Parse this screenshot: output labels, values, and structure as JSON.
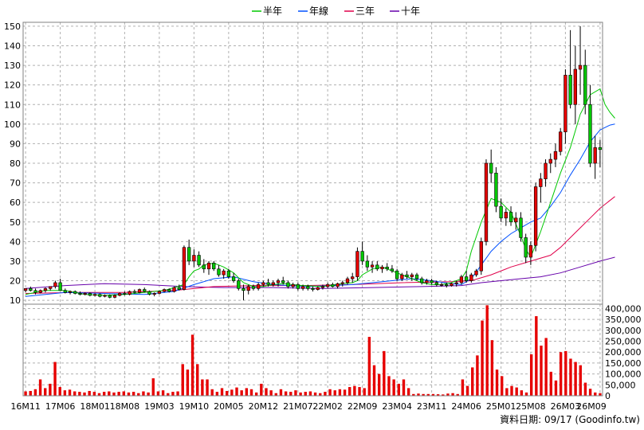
{
  "legend": [
    {
      "name": "半年",
      "color": "#00c800"
    },
    {
      "name": "年線",
      "color": "#0050ff"
    },
    {
      "name": "三年",
      "color": "#e0004a"
    },
    {
      "name": "十年",
      "color": "#6600aa"
    }
  ],
  "footer": "資料日期: 09/17  (Goodinfo.tw)",
  "chart_data": {
    "type": "candlestick",
    "price_axis": {
      "ylim": [
        8,
        152
      ],
      "ticks": [
        10,
        20,
        30,
        40,
        50,
        60,
        70,
        80,
        90,
        100,
        110,
        120,
        130,
        140,
        150
      ],
      "position": "left"
    },
    "volume_axis": {
      "ylim": [
        0,
        420000
      ],
      "ticks": [
        0,
        50000,
        100000,
        150000,
        200000,
        250000,
        300000,
        350000,
        400000
      ],
      "tick_labels": [
        "0",
        "50,000",
        "100,000",
        "150,000",
        "200,000",
        "250,000",
        "300,000",
        "350,000",
        "400,000"
      ],
      "position": "right"
    },
    "x_labels": [
      "16M11",
      "17M06",
      "18M01",
      "18M08",
      "19M03",
      "19M10",
      "20M05",
      "20M12",
      "21M07",
      "22M02",
      "22M09",
      "23M04",
      "23M11",
      "24M06",
      "25M01",
      "25M08",
      "26M03",
      "26M09"
    ],
    "grid": true,
    "legend_position": "top",
    "colors": {
      "up": "#e60000",
      "down": "#00c800",
      "volume": "#e60000"
    },
    "candles": [
      [
        15,
        16,
        14,
        16
      ],
      [
        16,
        17,
        14.5,
        15
      ],
      [
        15,
        16,
        13,
        14
      ],
      [
        14,
        15.5,
        13.5,
        15
      ],
      [
        15,
        16.5,
        14,
        16
      ],
      [
        16,
        17,
        15,
        17
      ],
      [
        17,
        20,
        16,
        19
      ],
      [
        19,
        21,
        15,
        15
      ],
      [
        15,
        16,
        13.5,
        14
      ],
      [
        14,
        15,
        13,
        14.5
      ],
      [
        14.5,
        15,
        13,
        13.5
      ],
      [
        13.5,
        14.5,
        12.5,
        13
      ],
      [
        13,
        14,
        12.5,
        13.5
      ],
      [
        13.5,
        14,
        12,
        12.5
      ],
      [
        12.5,
        13.5,
        12,
        13
      ],
      [
        13,
        13.5,
        11.5,
        12
      ],
      [
        12,
        13,
        11.5,
        12.5
      ],
      [
        12.5,
        13,
        11,
        11.5
      ],
      [
        11.5,
        13,
        11,
        12.5
      ],
      [
        12.5,
        14,
        12,
        13.5
      ],
      [
        13.5,
        14.5,
        12.5,
        13
      ],
      [
        13,
        15,
        12.5,
        14.5
      ],
      [
        14.5,
        15.5,
        13.5,
        14
      ],
      [
        14,
        16,
        13.5,
        15.5
      ],
      [
        15.5,
        16.5,
        14,
        14.5
      ],
      [
        14.5,
        15,
        12.5,
        13
      ],
      [
        13,
        14,
        12,
        13.5
      ],
      [
        13.5,
        15,
        13,
        14.5
      ],
      [
        14.5,
        16,
        14,
        15.5
      ],
      [
        15.5,
        16,
        14,
        14.5
      ],
      [
        14.5,
        17,
        14,
        16.5
      ],
      [
        16.5,
        18,
        15,
        15.5
      ],
      [
        15.5,
        38,
        15,
        37
      ],
      [
        37,
        41,
        28,
        30
      ],
      [
        30,
        36,
        27,
        33
      ],
      [
        33,
        35,
        27,
        28
      ],
      [
        28,
        31,
        24,
        26
      ],
      [
        26,
        30,
        23,
        29
      ],
      [
        29,
        30,
        25,
        26
      ],
      [
        26,
        28,
        22,
        23
      ],
      [
        23,
        26,
        21,
        25
      ],
      [
        25,
        26,
        21,
        22
      ],
      [
        22,
        24,
        19,
        20
      ],
      [
        20,
        21,
        15,
        16
      ],
      [
        16,
        18,
        10,
        15
      ],
      [
        15,
        18,
        13,
        17
      ],
      [
        17,
        18,
        15,
        16
      ],
      [
        16,
        19,
        15,
        18
      ],
      [
        18,
        20,
        17,
        19
      ],
      [
        19,
        21,
        17,
        18
      ],
      [
        18,
        20,
        17,
        19
      ],
      [
        19,
        21,
        17,
        20
      ],
      [
        20,
        22,
        18,
        19
      ],
      [
        19,
        20,
        16,
        17
      ],
      [
        17,
        19,
        16,
        18
      ],
      [
        18,
        19,
        15,
        16
      ],
      [
        16,
        18,
        15,
        17
      ],
      [
        17,
        18,
        15,
        16
      ],
      [
        16,
        17,
        14.5,
        15.5
      ],
      [
        15.5,
        17,
        15,
        16.5
      ],
      [
        16.5,
        18,
        15.5,
        17
      ],
      [
        17,
        19,
        16,
        18
      ],
      [
        18,
        19,
        16.5,
        17
      ],
      [
        17,
        19,
        16,
        18.5
      ],
      [
        18.5,
        20,
        17,
        19
      ],
      [
        19,
        22,
        18,
        21
      ],
      [
        21,
        24,
        19,
        22
      ],
      [
        22,
        37,
        20,
        35
      ],
      [
        35,
        40,
        28,
        30
      ],
      [
        30,
        33,
        25,
        27
      ],
      [
        27,
        30,
        24,
        28
      ],
      [
        28,
        30,
        25,
        26
      ],
      [
        26,
        28,
        24,
        27
      ],
      [
        27,
        29,
        25,
        26
      ],
      [
        26,
        28,
        24,
        25
      ],
      [
        25,
        26,
        20,
        21
      ],
      [
        21,
        24,
        20,
        23
      ],
      [
        23,
        25,
        21,
        22
      ],
      [
        22,
        24,
        20,
        23
      ],
      [
        23,
        24,
        20,
        21
      ],
      [
        21,
        22,
        18,
        19
      ],
      [
        19,
        21,
        18,
        20
      ],
      [
        20,
        21,
        18,
        19
      ],
      [
        19,
        20,
        17,
        18
      ],
      [
        18,
        19,
        17,
        18
      ],
      [
        18,
        19,
        16.5,
        17.5
      ],
      [
        17.5,
        19,
        17,
        18.5
      ],
      [
        18.5,
        20,
        17,
        19
      ],
      [
        19,
        23,
        18,
        22
      ],
      [
        22,
        25,
        19,
        20
      ],
      [
        20,
        24,
        19,
        23
      ],
      [
        23,
        26,
        22,
        25
      ],
      [
        25,
        42,
        23,
        40
      ],
      [
        40,
        82,
        38,
        80
      ],
      [
        80,
        87,
        70,
        75
      ],
      [
        75,
        78,
        55,
        58
      ],
      [
        58,
        62,
        50,
        52
      ],
      [
        52,
        57,
        48,
        55
      ],
      [
        55,
        58,
        48,
        50
      ],
      [
        50,
        55,
        46,
        52
      ],
      [
        52,
        55,
        40,
        42
      ],
      [
        42,
        44,
        29,
        32
      ],
      [
        32,
        40,
        28,
        38
      ],
      [
        38,
        70,
        35,
        68
      ],
      [
        68,
        75,
        60,
        72
      ],
      [
        72,
        82,
        68,
        80
      ],
      [
        80,
        85,
        75,
        82
      ],
      [
        82,
        90,
        78,
        86
      ],
      [
        86,
        98,
        84,
        96
      ],
      [
        96,
        128,
        90,
        125
      ],
      [
        125,
        148,
        108,
        110
      ],
      [
        110,
        140,
        100,
        128
      ],
      [
        128,
        150,
        115,
        130
      ],
      [
        130,
        138,
        105,
        110
      ],
      [
        110,
        120,
        78,
        80
      ],
      [
        80,
        94,
        72,
        88
      ],
      [
        88,
        92,
        78,
        87
      ]
    ],
    "volumes": [
      20000,
      22000,
      30000,
      75000,
      35000,
      55000,
      155000,
      40000,
      25000,
      28000,
      20000,
      18000,
      15000,
      22000,
      18000,
      12000,
      18000,
      20000,
      15000,
      18000,
      20000,
      15000,
      18000,
      12000,
      20000,
      15000,
      80000,
      20000,
      25000,
      12000,
      18000,
      20000,
      145000,
      120000,
      280000,
      145000,
      75000,
      75000,
      30000,
      18000,
      35000,
      22000,
      28000,
      38000,
      25000,
      35000,
      30000,
      15000,
      55000,
      35000,
      25000,
      12000,
      30000,
      20000,
      18000,
      25000,
      15000,
      18000,
      20000,
      15000,
      12000,
      18000,
      30000,
      25000,
      30000,
      28000,
      40000,
      45000,
      40000,
      35000,
      270000,
      140000,
      100000,
      205000,
      90000,
      75000,
      55000,
      75000,
      35000,
      8000,
      10000,
      8000,
      8000,
      8000,
      7000,
      6000,
      10000,
      12000,
      8000,
      75000,
      45000,
      130000,
      185000,
      345000,
      415000,
      255000,
      120000,
      90000,
      35000,
      45000,
      38000,
      25000,
      15000,
      190000,
      365000,
      230000,
      265000,
      110000,
      70000,
      200000,
      205000,
      170000,
      155000,
      140000,
      60000,
      32000,
      15000,
      12000
    ],
    "half_year": [
      [
        0,
        13
      ],
      [
        4,
        15
      ],
      [
        8,
        15
      ],
      [
        12,
        13
      ],
      [
        16,
        12.5
      ],
      [
        20,
        13
      ],
      [
        24,
        14
      ],
      [
        28,
        15
      ],
      [
        32,
        18
      ],
      [
        33,
        22
      ],
      [
        34,
        25
      ],
      [
        35,
        26
      ],
      [
        36,
        28
      ],
      [
        38,
        29
      ],
      [
        40,
        27
      ],
      [
        42,
        24
      ],
      [
        44,
        19
      ],
      [
        46,
        17
      ],
      [
        48,
        17
      ],
      [
        50,
        18
      ],
      [
        52,
        18.5
      ],
      [
        56,
        17.5
      ],
      [
        60,
        17
      ],
      [
        64,
        18.5
      ],
      [
        66,
        19
      ],
      [
        67,
        20
      ],
      [
        68,
        23
      ],
      [
        70,
        26
      ],
      [
        72,
        27
      ],
      [
        74,
        25
      ],
      [
        76,
        23
      ],
      [
        78,
        21
      ],
      [
        80,
        19
      ],
      [
        82,
        18
      ],
      [
        84,
        18
      ],
      [
        86,
        19
      ],
      [
        88,
        21
      ],
      [
        89,
        25
      ],
      [
        90,
        35
      ],
      [
        92,
        50
      ],
      [
        94,
        62
      ],
      [
        96,
        60
      ],
      [
        98,
        55
      ],
      [
        100,
        43
      ],
      [
        101,
        36
      ],
      [
        102,
        32
      ],
      [
        104,
        45
      ],
      [
        106,
        60
      ],
      [
        108,
        75
      ],
      [
        110,
        88
      ],
      [
        112,
        105
      ],
      [
        114,
        115
      ],
      [
        116,
        118
      ],
      [
        117,
        110
      ],
      [
        118,
        106
      ],
      [
        119,
        103
      ]
    ],
    "annual": [
      [
        0,
        12
      ],
      [
        8,
        14
      ],
      [
        16,
        13.5
      ],
      [
        24,
        13
      ],
      [
        30,
        14.5
      ],
      [
        34,
        18
      ],
      [
        38,
        21
      ],
      [
        42,
        22
      ],
      [
        46,
        19.5
      ],
      [
        50,
        18
      ],
      [
        56,
        17
      ],
      [
        62,
        17.5
      ],
      [
        66,
        18
      ],
      [
        70,
        19
      ],
      [
        74,
        20
      ],
      [
        78,
        21
      ],
      [
        82,
        20
      ],
      [
        86,
        18.5
      ],
      [
        88,
        18
      ],
      [
        90,
        21
      ],
      [
        92,
        28
      ],
      [
        94,
        35
      ],
      [
        96,
        40
      ],
      [
        98,
        44
      ],
      [
        100,
        47
      ],
      [
        102,
        50
      ],
      [
        104,
        52
      ],
      [
        106,
        58
      ],
      [
        108,
        65
      ],
      [
        110,
        74
      ],
      [
        112,
        82
      ],
      [
        114,
        91
      ],
      [
        116,
        97
      ],
      [
        118,
        99.5
      ],
      [
        119,
        100
      ]
    ],
    "three_year": [
      [
        0,
        13.5
      ],
      [
        10,
        14
      ],
      [
        20,
        14
      ],
      [
        30,
        15
      ],
      [
        38,
        17
      ],
      [
        46,
        17.5
      ],
      [
        56,
        17.5
      ],
      [
        66,
        18
      ],
      [
        76,
        19
      ],
      [
        86,
        19.5
      ],
      [
        90,
        20
      ],
      [
        94,
        23
      ],
      [
        98,
        27
      ],
      [
        102,
        30
      ],
      [
        106,
        33
      ],
      [
        108,
        37
      ],
      [
        110,
        42
      ],
      [
        112,
        47
      ],
      [
        114,
        52
      ],
      [
        116,
        57
      ],
      [
        118,
        61
      ],
      [
        119,
        63
      ]
    ],
    "ten_year": [
      [
        0,
        16
      ],
      [
        8,
        17.5
      ],
      [
        16,
        18.5
      ],
      [
        24,
        18
      ],
      [
        32,
        17
      ],
      [
        40,
        16.5
      ],
      [
        50,
        16.5
      ],
      [
        60,
        16
      ],
      [
        70,
        16.5
      ],
      [
        80,
        17
      ],
      [
        88,
        17.5
      ],
      [
        92,
        19
      ],
      [
        96,
        20
      ],
      [
        100,
        21
      ],
      [
        104,
        22
      ],
      [
        108,
        24
      ],
      [
        112,
        27
      ],
      [
        116,
        30
      ],
      [
        119,
        32
      ]
    ]
  }
}
